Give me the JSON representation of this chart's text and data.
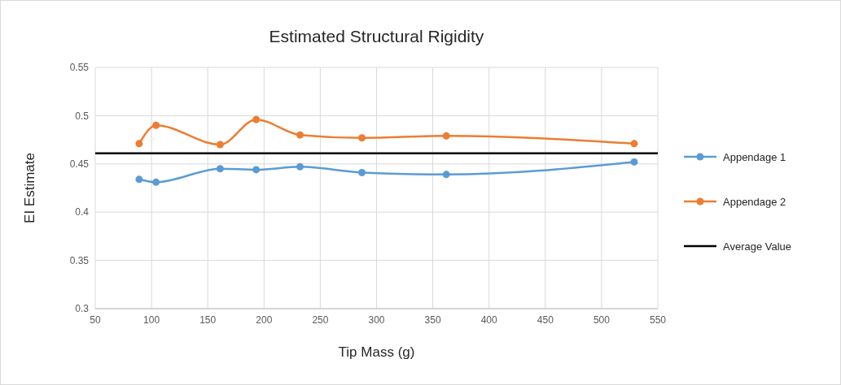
{
  "chart_data": {
    "type": "line",
    "title": "Estimated Structural Rigidity",
    "xlabel": "Tip Mass (g)",
    "ylabel": "EI Estimate",
    "x": [
      89,
      104,
      161,
      193,
      232,
      287,
      362,
      529
    ],
    "series": [
      {
        "name": "Appendage 1",
        "color": "#5b9bd5",
        "values": [
          0.434,
          0.431,
          0.445,
          0.444,
          0.447,
          0.441,
          0.439,
          0.452
        ]
      },
      {
        "name": "Appendage 2",
        "color": "#ed7d31",
        "values": [
          0.471,
          0.49,
          0.47,
          0.496,
          0.48,
          0.477,
          0.479,
          0.471
        ]
      }
    ],
    "ref_lines": [
      {
        "axis": "y",
        "value": 0.461,
        "label": "Average Value",
        "color": "#000000"
      }
    ],
    "xlim": [
      50,
      550
    ],
    "xticks": [
      50,
      100,
      150,
      200,
      250,
      300,
      350,
      400,
      450,
      500,
      550
    ],
    "ylim": [
      0.3,
      0.55
    ],
    "yticks": [
      0.3,
      0.35,
      0.4,
      0.45,
      0.5,
      0.55
    ],
    "grid": true,
    "legend": "right",
    "marker": "circle",
    "line_style": "solid"
  }
}
